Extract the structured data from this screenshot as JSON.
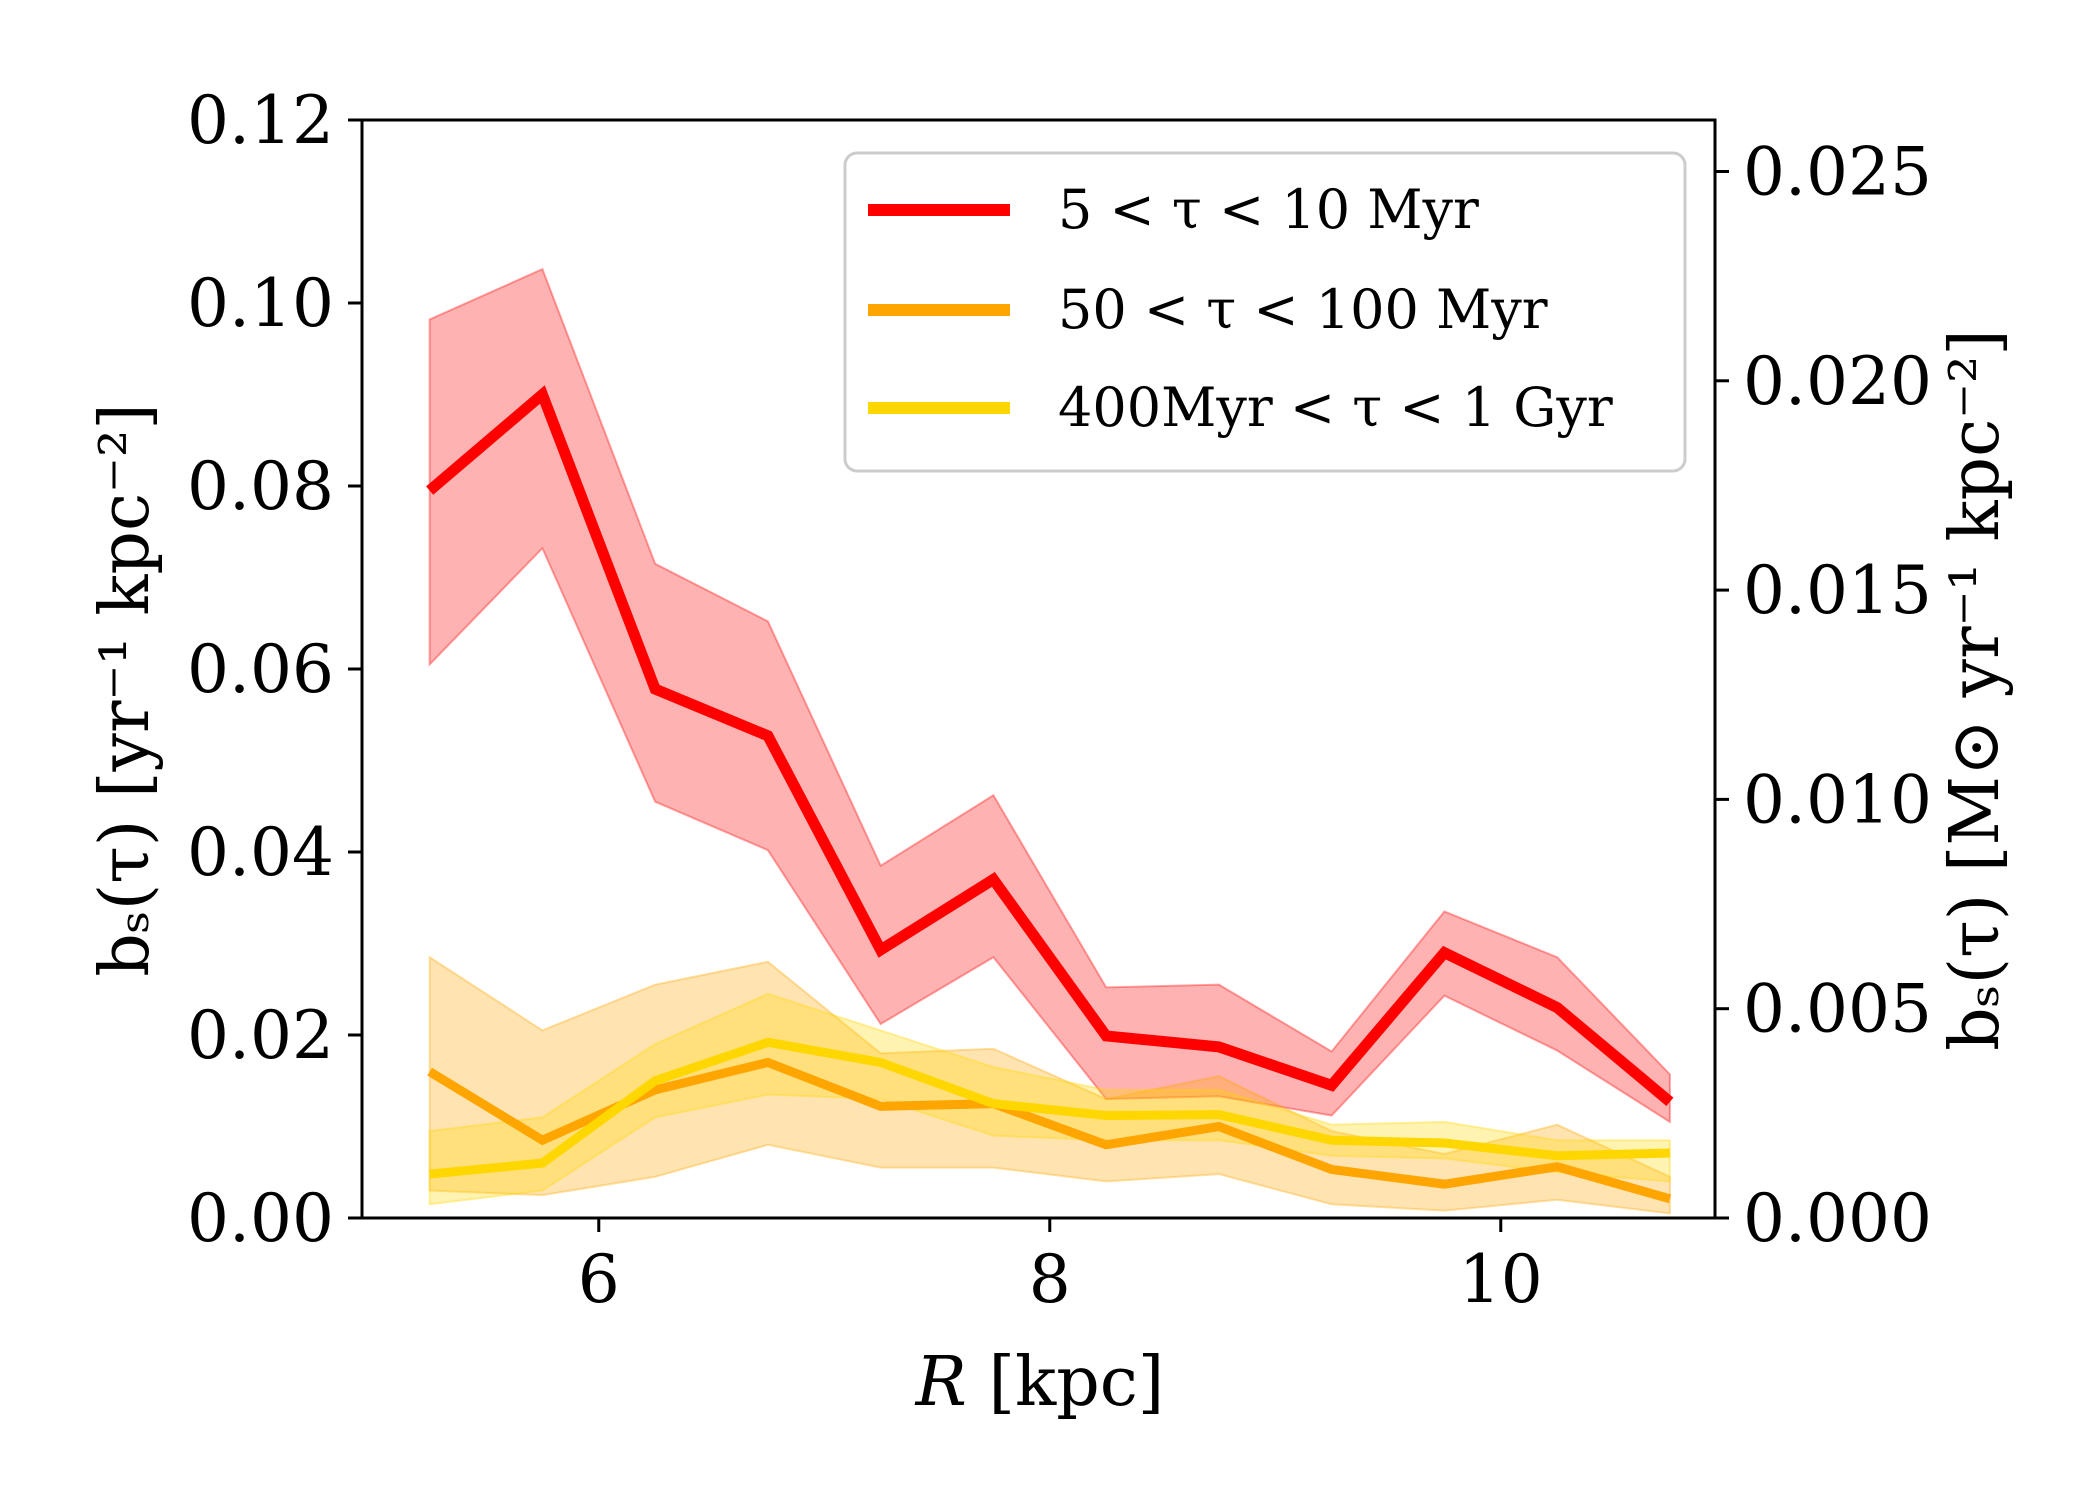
{
  "chart_data": {
    "type": "line",
    "x": [
      5.25,
      5.75,
      6.25,
      6.75,
      7.25,
      7.75,
      8.25,
      8.75,
      9.25,
      9.75,
      10.25,
      10.75
    ],
    "xlim": [
      4.95,
      10.95
    ],
    "ylim": [
      0.0,
      0.12
    ],
    "y2lim": [
      0.0,
      0.02623
    ],
    "xticks": [
      6,
      8,
      10
    ],
    "xtick_labels": [
      "6",
      "8",
      "10"
    ],
    "yticks": [
      0.0,
      0.02,
      0.04,
      0.06,
      0.08,
      0.1,
      0.12
    ],
    "ytick_labels": [
      "0.00",
      "0.02",
      "0.04",
      "0.06",
      "0.08",
      "0.10",
      "0.12"
    ],
    "y2ticks": [
      0.0,
      0.005,
      0.01,
      0.015,
      0.02,
      0.025
    ],
    "y2tick_labels": [
      "0.000",
      "0.005",
      "0.010",
      "0.015",
      "0.020",
      "0.025"
    ],
    "xlabel_var": "R",
    "xlabel_unit": " [kpc]",
    "ylabel_left": "bₛ(τ) [yr⁻¹ kpc⁻²]",
    "ylabel_right": "bₛ(τ) [M⊙ yr⁻¹ kpc⁻²]",
    "legend_position": "top-right",
    "series": [
      {
        "name": "5 < τ < 10 Myr",
        "color": "#ff0000",
        "band_color": "#ff0000",
        "values": [
          0.0795,
          0.09,
          0.0578,
          0.0527,
          0.0293,
          0.037,
          0.0199,
          0.0187,
          0.0145,
          0.029,
          0.023,
          0.0127
        ],
        "lower": [
          0.0605,
          0.0732,
          0.0455,
          0.0402,
          0.0212,
          0.0285,
          0.013,
          0.0133,
          0.0112,
          0.0243,
          0.0183,
          0.0105
        ],
        "upper": [
          0.0982,
          0.1037,
          0.0715,
          0.0652,
          0.0385,
          0.0462,
          0.0252,
          0.0255,
          0.0182,
          0.0335,
          0.0285,
          0.0157
        ]
      },
      {
        "name": "50 < τ < 100 Myr",
        "color": "#ffa500",
        "band_color": "#ffa500",
        "values": [
          0.016,
          0.0085,
          0.014,
          0.017,
          0.0122,
          0.0125,
          0.008,
          0.01,
          0.0053,
          0.0037,
          0.0056,
          0.0021
        ],
        "lower": [
          0.003,
          0.0025,
          0.0045,
          0.008,
          0.0055,
          0.0055,
          0.004,
          0.0048,
          0.0015,
          0.0008,
          0.002,
          0.0005
        ],
        "upper": [
          0.0285,
          0.0205,
          0.0255,
          0.028,
          0.018,
          0.0185,
          0.013,
          0.0155,
          0.0095,
          0.007,
          0.0102,
          0.0045
        ]
      },
      {
        "name": "400Myr < τ < 1 Gyr",
        "color": "#ffd700",
        "band_color": "#ffd700",
        "values": [
          0.0048,
          0.006,
          0.015,
          0.0192,
          0.017,
          0.0125,
          0.0112,
          0.0113,
          0.0085,
          0.0082,
          0.0068,
          0.0071
        ],
        "lower": [
          0.0015,
          0.003,
          0.011,
          0.0135,
          0.013,
          0.009,
          0.0085,
          0.0085,
          0.0068,
          0.0065,
          0.005,
          0.004
        ],
        "upper": [
          0.0095,
          0.011,
          0.019,
          0.0245,
          0.0205,
          0.0165,
          0.014,
          0.014,
          0.0102,
          0.0105,
          0.0085,
          0.0085
        ]
      }
    ]
  }
}
